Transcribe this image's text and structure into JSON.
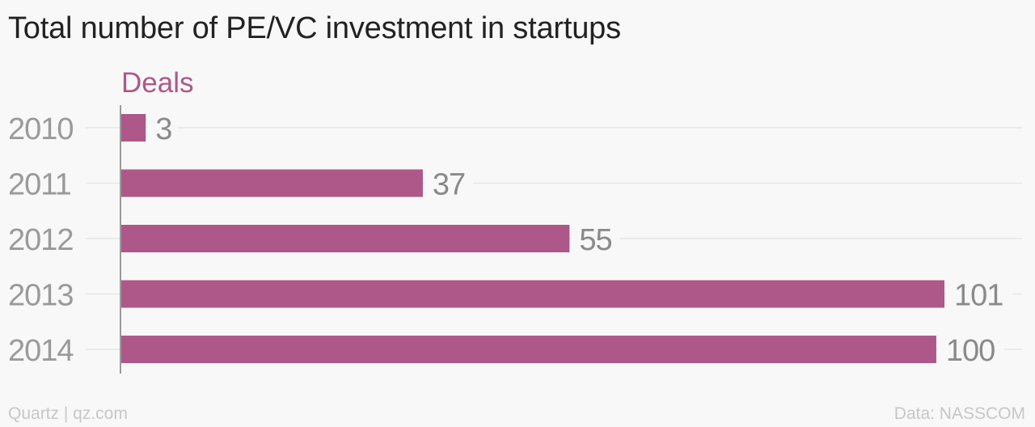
{
  "title": "Total number of PE/VC investment in startups",
  "footer": {
    "credit": "Quartz | qz.com",
    "source": "Data: NASSCOM"
  },
  "colors": {
    "bar": "#ad5888",
    "series_label": "#ad5888",
    "tick_label": "#9a9a9a",
    "value_label": "#8a8a8a",
    "grid": "#e6e6e6",
    "axis": "#9a9a9a"
  },
  "chart_data": {
    "type": "bar",
    "orientation": "horizontal",
    "title": "Total number of PE/VC investment in startups",
    "categories": [
      "2010",
      "2011",
      "2012",
      "2013",
      "2014"
    ],
    "series": [
      {
        "name": "Deals",
        "values": [
          3,
          37,
          55,
          101,
          100
        ]
      }
    ],
    "xlim": [
      0,
      101
    ],
    "grid": true,
    "legend": "none"
  }
}
